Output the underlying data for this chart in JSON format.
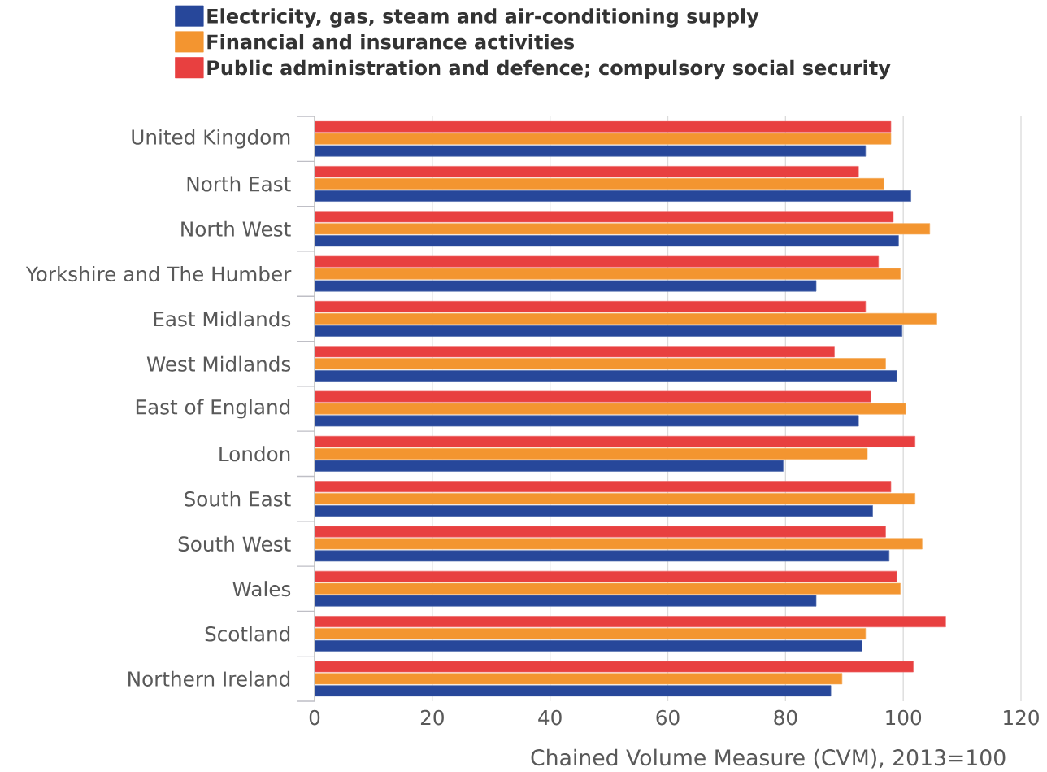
{
  "chart_data": {
    "type": "bar",
    "orientation": "horizontal",
    "xlabel": "Chained Volume Measure (CVM), 2013=100",
    "categories": [
      "United Kingdom",
      "North East",
      "North West",
      "Yorkshire and The Humber",
      "East Midlands",
      "West Midlands",
      "East of England",
      "London",
      "South East",
      "South West",
      "Wales",
      "Scotland",
      "Northern Ireland"
    ],
    "series": [
      {
        "name": "Electricity, gas, steam and air-conditioning supply",
        "color": "#27479a",
        "values": [
          93.6,
          101.3,
          99.2,
          85.2,
          99.8,
          98.9,
          92.4,
          79.6,
          94.8,
          97.6,
          85.2,
          93.0,
          87.7
        ]
      },
      {
        "name": "Financial and insurance activities",
        "color": "#f39530",
        "values": [
          97.9,
          96.7,
          104.5,
          99.5,
          105.7,
          97.0,
          100.4,
          93.9,
          102.0,
          103.2,
          99.5,
          93.6,
          89.6
        ]
      },
      {
        "name": "Public administration and defence; compulsory social security",
        "color": "#e84040",
        "values": [
          97.9,
          92.4,
          98.3,
          95.8,
          93.6,
          88.3,
          94.5,
          102.0,
          97.9,
          97.0,
          98.9,
          107.2,
          101.7
        ]
      }
    ],
    "xlim": [
      0,
      120
    ],
    "xticks": [
      0,
      20,
      40,
      60,
      80,
      100,
      120
    ],
    "grid": "x",
    "legend": "top"
  }
}
